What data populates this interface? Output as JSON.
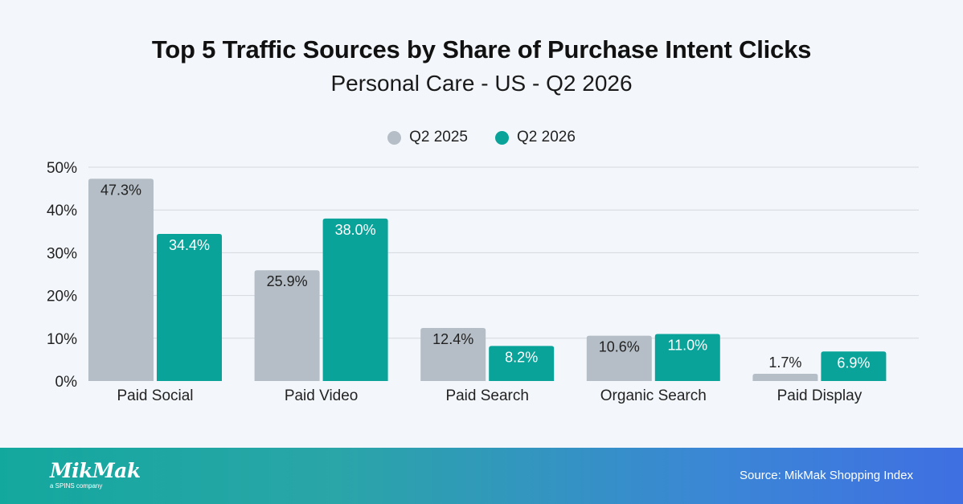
{
  "chart_data": {
    "type": "bar",
    "title": "Top 5 Traffic Sources by Share of Purchase Intent Clicks",
    "subtitle": "Personal Care - US - Q2 2026",
    "categories": [
      "Paid Social",
      "Paid Video",
      "Paid Search",
      "Organic Search",
      "Paid Display"
    ],
    "series": [
      {
        "name": "Q2 2025",
        "color": "#b5bec6",
        "values": [
          47.3,
          25.9,
          12.4,
          10.6,
          1.7
        ],
        "labels": [
          "47.3%",
          "25.9%",
          "12.4%",
          "10.6%",
          "1.7%"
        ]
      },
      {
        "name": "Q2 2026",
        "color": "#0aa39a",
        "values": [
          34.4,
          38.0,
          8.2,
          11.0,
          6.9
        ],
        "labels": [
          "34.4%",
          "38.0%",
          "8.2%",
          "11.0%",
          "6.9%"
        ]
      }
    ],
    "ylim": [
      0,
      50
    ],
    "yticks": [
      "0%",
      "10%",
      "20%",
      "30%",
      "40%",
      "50%"
    ],
    "grid": true,
    "legend": "top-center"
  },
  "footer": {
    "logo_text": "MikMak",
    "logo_subtext": "a SPINS company",
    "source": "Source: MikMak Shopping Index"
  }
}
